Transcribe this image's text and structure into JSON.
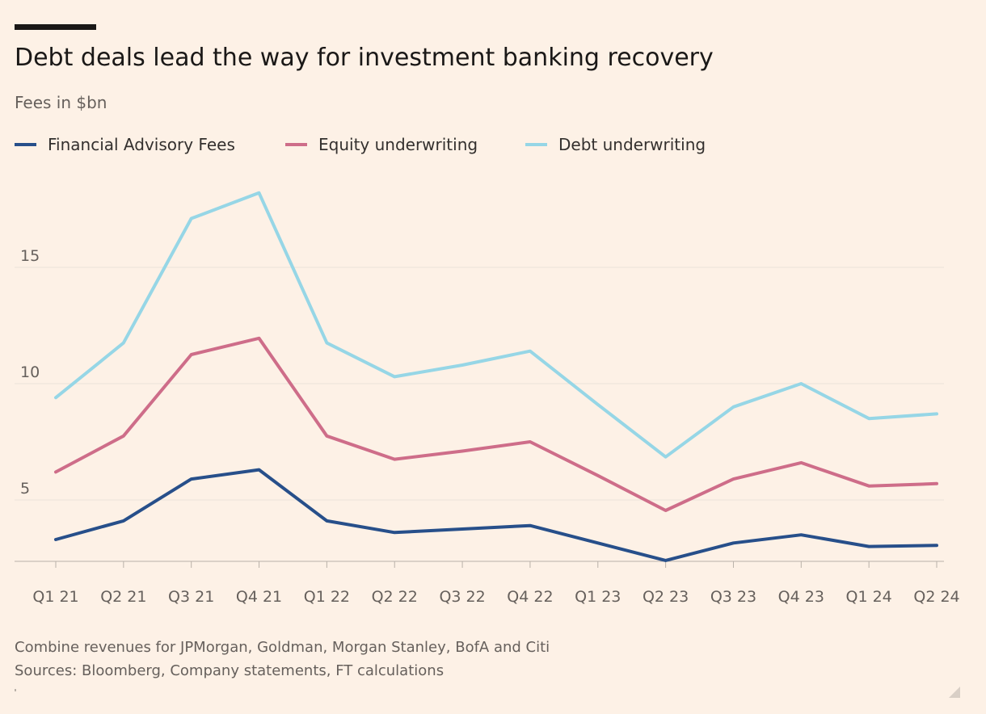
{
  "title": "Debt deals lead the way for investment banking recovery",
  "subtitle": "Fees in $bn",
  "footer": {
    "note": "Combine revenues for JPMorgan, Goldman, Morgan Stanley, BofA and Citi",
    "sources": "Sources: Bloomberg, Company statements, FT calculations"
  },
  "colors": {
    "background": "#fdf1e6",
    "advisory": "#274f8a",
    "equity": "#ce6d89",
    "debt": "#96d6e6",
    "grid": "#ebe3da"
  },
  "chart_data": {
    "type": "line",
    "title": "Debt deals lead the way for investment banking recovery",
    "subtitle": "Fees in $bn",
    "xlabel": "",
    "ylabel": "",
    "categories": [
      "Q1 21",
      "Q2 21",
      "Q3 21",
      "Q4 21",
      "Q1 22",
      "Q2 22",
      "Q3 22",
      "Q4 22",
      "Q1 23",
      "Q2 23",
      "Q3 23",
      "Q4 23",
      "Q1 24",
      "Q2 24"
    ],
    "ylim": [
      2.4,
      19
    ],
    "yticks": [
      5,
      10,
      15
    ],
    "grid": true,
    "legend_position": "top-left",
    "series": [
      {
        "name": "Financial Advisory Fees",
        "color_key": "advisory",
        "values": [
          3.3,
          4.1,
          5.9,
          6.3,
          4.1,
          3.6,
          3.75,
          3.9,
          3.15,
          2.4,
          3.15,
          3.5,
          3.0,
          3.05
        ]
      },
      {
        "name": "Equity underwriting",
        "color_key": "equity",
        "values": [
          6.2,
          7.75,
          11.25,
          11.95,
          7.75,
          6.75,
          7.1,
          7.5,
          6.05,
          4.55,
          5.9,
          6.6,
          5.6,
          5.7
        ]
      },
      {
        "name": "Debt underwriting",
        "color_key": "debt",
        "values": [
          9.4,
          11.75,
          17.1,
          18.2,
          11.75,
          10.3,
          10.8,
          11.4,
          9.1,
          6.85,
          9.0,
          10.0,
          8.5,
          8.7
        ]
      }
    ]
  }
}
